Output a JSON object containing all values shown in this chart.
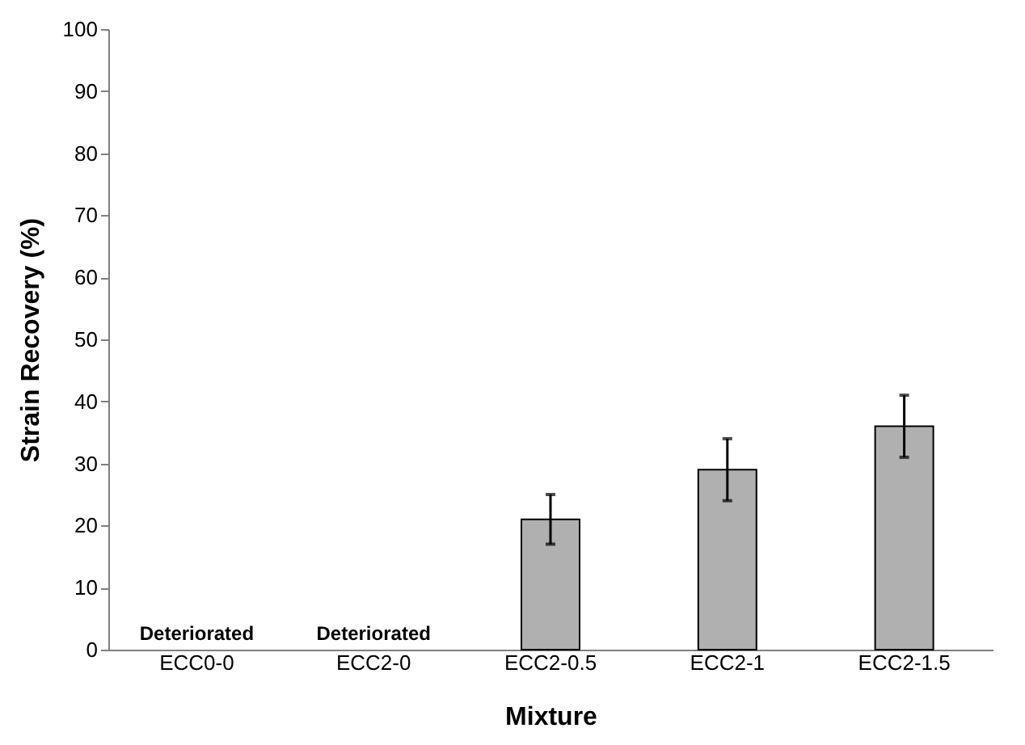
{
  "chart_data": {
    "type": "bar",
    "xlabel": "Mixture",
    "ylabel": "Strain Recovery (%)",
    "categories": [
      "ECC0-0",
      "ECC2-0",
      "ECC2-0.5",
      "ECC2-1",
      "ECC2-1.5"
    ],
    "values": [
      null,
      null,
      21,
      29,
      36
    ],
    "errors": [
      null,
      null,
      4,
      5,
      5
    ],
    "color": "#b0b0b0",
    "ylim": [
      0,
      100
    ],
    "yticks": [
      0,
      10,
      20,
      30,
      40,
      50,
      60,
      70,
      80,
      90,
      100
    ],
    "annotations": [
      "Deteriorated",
      "Deteriorated"
    ]
  }
}
